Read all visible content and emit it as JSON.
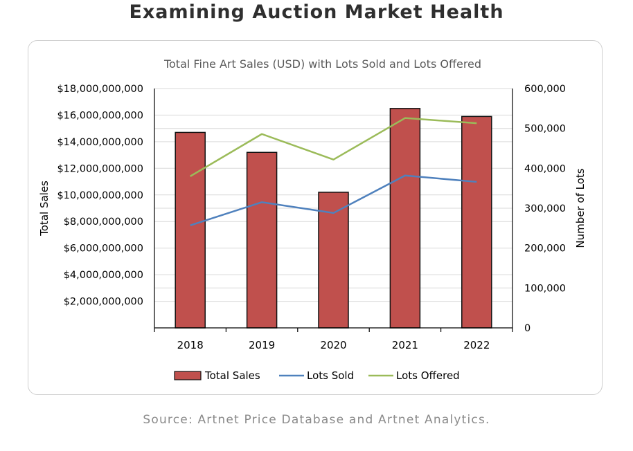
{
  "page": {
    "title": "Examining Auction Market Health",
    "source": "Source: Artnet Price Database and Artnet Analytics."
  },
  "chart_data": {
    "type": "bar",
    "title": "Total Fine Art Sales (USD) with Lots Sold and Lots Offered",
    "xlabel": "",
    "ylabel": "Total Sales",
    "y2label": "Number of Lots",
    "categories": [
      "2018",
      "2019",
      "2020",
      "2021",
      "2022"
    ],
    "ylim": [
      0,
      18000000000
    ],
    "y2lim": [
      0,
      600000
    ],
    "yticks": [
      "$2,000,000,000",
      "$4,000,000,000",
      "$6,000,000,000",
      "$8,000,000,000",
      "$10,000,000,000",
      "$12,000,000,000",
      "$14,000,000,000",
      "$16,000,000,000",
      "$18,000,000,000"
    ],
    "y2ticks": [
      "0",
      "100,000",
      "200,000",
      "300,000",
      "400,000",
      "500,000",
      "600,000"
    ],
    "grid": true,
    "legend_position": "bottom",
    "series": [
      {
        "name": "Total Sales",
        "type": "bar",
        "axis": "left",
        "color": "#c0504d",
        "values": [
          14700000000,
          13200000000,
          10200000000,
          16500000000,
          15900000000
        ]
      },
      {
        "name": "Lots Sold",
        "type": "line",
        "axis": "right",
        "color": "#4f81bd",
        "values": [
          257000,
          315000,
          288000,
          382000,
          366000
        ]
      },
      {
        "name": "Lots Offered",
        "type": "line",
        "axis": "right",
        "color": "#9bbb59",
        "values": [
          380000,
          486000,
          422000,
          526000,
          513000
        ]
      }
    ]
  }
}
